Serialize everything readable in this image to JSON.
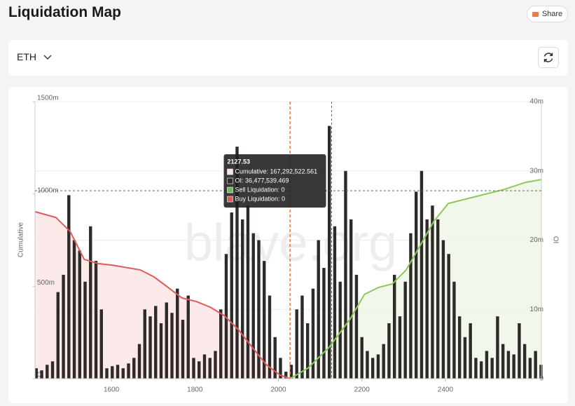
{
  "header": {
    "share": "Share"
  },
  "controls": {
    "symbol": "ETH"
  },
  "chart_data": {
    "type": "bar",
    "title": "Liquidation Map",
    "ylabel": "Cumulative",
    "y2label": "OI",
    "watermark": "blave.org",
    "xlim": [
      1417,
      2630
    ],
    "xticks": [
      1600,
      1800,
      2000,
      2200,
      2400
    ],
    "ylim": [
      0,
      1500
    ],
    "yticks": [
      0,
      {
        "value": 500,
        "label": "500m"
      },
      {
        "value": 1000,
        "label": "1000m"
      },
      {
        "value": 1500,
        "label": "1500m"
      }
    ],
    "y2lim": [
      0,
      40
    ],
    "y2ticks": [
      0,
      {
        "value": 10,
        "label": "10m"
      },
      {
        "value": 20,
        "label": "20m"
      },
      {
        "value": 30,
        "label": "30m"
      },
      {
        "value": 40,
        "label": "40m"
      }
    ],
    "grid": true,
    "price_line": {
      "x": 2028,
      "color": "#e8763a"
    },
    "series": [
      {
        "type": "bar",
        "axis": "y2",
        "color": "#2e2a2a",
        "x": [
          1420,
          1433,
          1446,
          1459,
          1472,
          1485,
          1498,
          1511,
          1524,
          1537,
          1550,
          1563,
          1576,
          1589,
          1602,
          1615,
          1628,
          1641,
          1654,
          1667,
          1680,
          1693,
          1706,
          1719,
          1732,
          1745,
          1758,
          1771,
          1784,
          1797,
          1810,
          1823,
          1836,
          1849,
          1862,
          1875,
          1888,
          1901,
          1914,
          1927,
          1940,
          1953,
          1966,
          1979,
          1992,
          2005,
          2018,
          2031,
          2044,
          2057,
          2070,
          2083,
          2096,
          2109,
          2122,
          2135,
          2148,
          2161,
          2174,
          2187,
          2200,
          2213,
          2226,
          2239,
          2252,
          2265,
          2278,
          2291,
          2304,
          2317,
          2330,
          2343,
          2356,
          2369,
          2382,
          2395,
          2408,
          2421,
          2434,
          2447,
          2460,
          2473,
          2486,
          2499,
          2512,
          2525,
          2538,
          2551,
          2564,
          2577,
          2590,
          2603,
          2616,
          2629
        ],
        "values": [
          1.5,
          1.2,
          2,
          2.5,
          12.5,
          15,
          26.5,
          20,
          18.5,
          14,
          22,
          17,
          10,
          1.5,
          1.8,
          2,
          1.5,
          2.2,
          3,
          5,
          10,
          9,
          10.5,
          8,
          11,
          9.5,
          13,
          8.5,
          12,
          3,
          2.5,
          3.5,
          3,
          4,
          10,
          18,
          24,
          33.5,
          23,
          25,
          21,
          20,
          17,
          12,
          6,
          3,
          1,
          2,
          10,
          12,
          8,
          13,
          20,
          16,
          36.5,
          22,
          14,
          30,
          23,
          15,
          6,
          4,
          3,
          3.5,
          5,
          8,
          15,
          9,
          14,
          21,
          27,
          30,
          23,
          25,
          23,
          20,
          18,
          14,
          9,
          6,
          8,
          3,
          2.5,
          4,
          3,
          9,
          5,
          4,
          3.5,
          8,
          5,
          3,
          4,
          2
        ]
      },
      {
        "type": "line",
        "color": "#e05a5a",
        "fill": "#fbe4e3",
        "x": [
          1417,
          1467,
          1501,
          1535,
          1568,
          1602,
          1669,
          1702,
          1736,
          1769,
          1803,
          1837,
          1870,
          1904,
          1937,
          1971,
          2004,
          2028
        ],
        "values": [
          904,
          873,
          797,
          646,
          623,
          615,
          589,
          551,
          494,
          437,
          418,
          387,
          342,
          266,
          171,
          76,
          19,
          0
        ]
      },
      {
        "type": "line",
        "color": "#8cc95a",
        "fill": "#eef6e6",
        "x": [
          2028,
          2071,
          2122,
          2172,
          2206,
          2240,
          2273,
          2306,
          2340,
          2373,
          2407,
          2474,
          2541,
          2592,
          2630
        ],
        "values": [
          0,
          57,
          171,
          323,
          456,
          494,
          513,
          589,
          722,
          854,
          949,
          987,
          1025,
          1063,
          1078
        ]
      }
    ],
    "tooltip": {
      "x": 2127.53,
      "rows": [
        "Cumulative: 167,292,522.561",
        "OI: 36,477,539.469",
        "Sell Liquidation: 0",
        "Buy Liquidation: 0"
      ]
    }
  }
}
